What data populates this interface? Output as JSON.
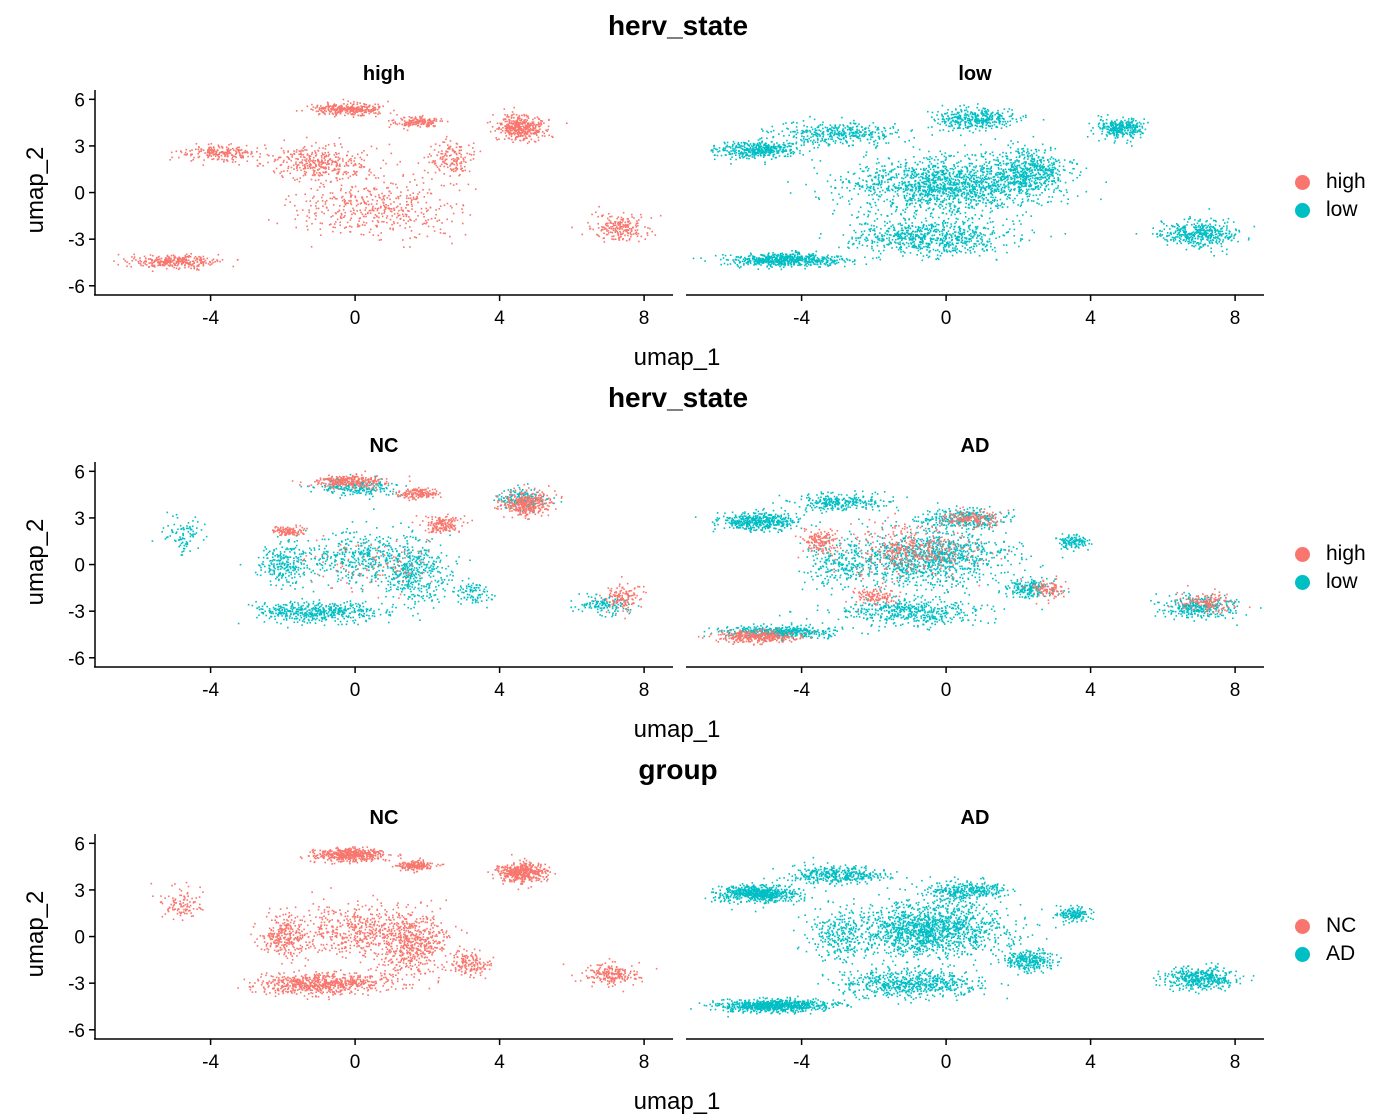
{
  "colors": {
    "red": "#F8766D",
    "teal": "#00BFC4",
    "axis": "#000000"
  },
  "legends": [
    {
      "items": [
        {
          "label": "high",
          "color": "#F8766D"
        },
        {
          "label": "low",
          "color": "#00BFC4"
        }
      ]
    },
    {
      "items": [
        {
          "label": "high",
          "color": "#F8766D"
        },
        {
          "label": "low",
          "color": "#00BFC4"
        }
      ]
    },
    {
      "items": [
        {
          "label": "NC",
          "color": "#F8766D"
        },
        {
          "label": "AD",
          "color": "#00BFC4"
        }
      ]
    }
  ],
  "chart_data": [
    {
      "type": "scatter",
      "title": "herv_state",
      "facet_by": "herv_state",
      "panels": [
        "high",
        "low"
      ],
      "xlabel": "umap_1",
      "ylabel": "umap_2",
      "xlim": [
        -7.2,
        8.8
      ],
      "ylim": [
        -6.4,
        6.6
      ],
      "xticks": [
        -4,
        0,
        4,
        8
      ],
      "yticks": [
        6,
        3,
        0,
        -3,
        -6
      ],
      "legend": "right",
      "series": [
        {
          "name": "high",
          "color": "#F8766D",
          "panel": 0,
          "points": 2600,
          "clusters": [
            [
              -0.2,
              5.4,
              0.9,
              0.35,
              0.12
            ],
            [
              1.7,
              4.6,
              0.6,
              0.3,
              0.06
            ],
            [
              4.6,
              4.2,
              0.6,
              0.7,
              0.16
            ],
            [
              -1.0,
              2.0,
              1.4,
              1.0,
              0.14
            ],
            [
              -3.8,
              2.6,
              1.0,
              0.5,
              0.08
            ],
            [
              0.5,
              -1.0,
              2.0,
              1.6,
              0.18
            ],
            [
              -5.0,
              -4.4,
              1.1,
              0.35,
              0.12
            ],
            [
              2.6,
              2.2,
              0.6,
              1.0,
              0.06
            ],
            [
              7.3,
              -2.2,
              0.7,
              0.8,
              0.08
            ]
          ]
        },
        {
          "name": "low",
          "color": "#00BFC4",
          "panel": 1,
          "points": 5200,
          "clusters": [
            [
              -5.2,
              2.8,
              1.0,
              0.5,
              0.08
            ],
            [
              0.0,
              0.5,
              2.5,
              1.6,
              0.28
            ],
            [
              -0.5,
              -2.8,
              2.0,
              1.0,
              0.14
            ],
            [
              -4.5,
              -4.3,
              1.4,
              0.4,
              0.12
            ],
            [
              0.8,
              4.8,
              1.0,
              0.6,
              0.07
            ],
            [
              4.8,
              4.2,
              0.6,
              0.6,
              0.06
            ],
            [
              2.3,
              1.4,
              0.9,
              1.3,
              0.1
            ],
            [
              7.0,
              -2.6,
              0.9,
              0.8,
              0.08
            ],
            [
              -3.0,
              3.8,
              1.5,
              0.7,
              0.07
            ]
          ]
        }
      ]
    },
    {
      "type": "scatter",
      "title": "herv_state",
      "facet_by": "group",
      "panels": [
        "NC",
        "AD"
      ],
      "xlabel": "umap_1",
      "ylabel": "umap_2",
      "xlim": [
        -7.2,
        8.8
      ],
      "ylim": [
        -6.4,
        6.6
      ],
      "xticks": [
        -4,
        0,
        4,
        8
      ],
      "yticks": [
        6,
        3,
        0,
        -3,
        -6
      ],
      "legend": "right",
      "series": [
        {
          "name": "low",
          "color": "#00BFC4",
          "panel": 0,
          "points": 2200,
          "clusters": [
            [
              -1.0,
              -3.0,
              1.6,
              0.6,
              0.22
            ],
            [
              1.6,
              -0.5,
              0.9,
              1.8,
              0.18
            ],
            [
              -2.0,
              0.0,
              0.6,
              1.2,
              0.1
            ],
            [
              0.0,
              5.0,
              1.0,
              0.5,
              0.1
            ],
            [
              4.6,
              4.2,
              0.6,
              0.6,
              0.08
            ],
            [
              0.0,
              0.5,
              1.5,
              1.5,
              0.18
            ],
            [
              6.9,
              -2.6,
              0.7,
              0.5,
              0.06
            ],
            [
              -4.8,
              2.0,
              0.5,
              1.0,
              0.04
            ],
            [
              3.2,
              -1.8,
              0.5,
              0.7,
              0.04
            ]
          ]
        },
        {
          "name": "high",
          "color": "#F8766D",
          "panel": 0,
          "points": 1300,
          "clusters": [
            [
              -0.2,
              5.4,
              0.9,
              0.35,
              0.22
            ],
            [
              1.7,
              4.6,
              0.5,
              0.3,
              0.12
            ],
            [
              4.7,
              4.0,
              0.6,
              0.7,
              0.28
            ],
            [
              2.4,
              2.6,
              0.5,
              0.6,
              0.12
            ],
            [
              -1.9,
              2.2,
              0.4,
              0.3,
              0.08
            ],
            [
              7.4,
              -2.0,
              0.5,
              0.7,
              0.1
            ],
            [
              0.5,
              0.0,
              1.5,
              1.5,
              0.08
            ]
          ]
        },
        {
          "name": "low",
          "color": "#00BFC4",
          "panel": 1,
          "points": 3900,
          "clusters": [
            [
              -5.2,
              2.8,
              1.0,
              0.5,
              0.12
            ],
            [
              -0.5,
              0.5,
              2.0,
              1.6,
              0.28
            ],
            [
              -1.0,
              -3.0,
              1.8,
              0.8,
              0.12
            ],
            [
              -4.6,
              -4.3,
              1.4,
              0.35,
              0.12
            ],
            [
              2.3,
              -1.5,
              0.6,
              0.6,
              0.05
            ],
            [
              3.5,
              1.5,
              0.4,
              0.4,
              0.03
            ],
            [
              7.0,
              -2.7,
              0.9,
              0.7,
              0.08
            ],
            [
              -3.0,
              4.0,
              1.2,
              0.5,
              0.07
            ],
            [
              0.5,
              3.0,
              1.0,
              0.6,
              0.08
            ],
            [
              -3.0,
              0.0,
              0.8,
              1.5,
              0.05
            ]
          ]
        },
        {
          "name": "high",
          "color": "#F8766D",
          "panel": 1,
          "points": 1400,
          "clusters": [
            [
              -5.3,
              -4.6,
              1.0,
              0.35,
              0.25
            ],
            [
              -1.0,
              1.0,
              1.5,
              1.5,
              0.28
            ],
            [
              -3.5,
              1.6,
              0.5,
              0.7,
              0.1
            ],
            [
              0.7,
              3.0,
              0.8,
              0.5,
              0.12
            ],
            [
              2.8,
              -1.5,
              0.4,
              0.5,
              0.07
            ],
            [
              7.2,
              -2.4,
              0.7,
              0.6,
              0.1
            ],
            [
              -2.0,
              -2.0,
              0.6,
              0.5,
              0.08
            ]
          ]
        }
      ]
    },
    {
      "type": "scatter",
      "title": "group",
      "facet_by": "group",
      "panels": [
        "NC",
        "AD"
      ],
      "xlabel": "umap_1",
      "ylabel": "umap_2",
      "xlim": [
        -7.2,
        8.8
      ],
      "ylim": [
        -6.4,
        6.6
      ],
      "xticks": [
        -4,
        0,
        4,
        8
      ],
      "yticks": [
        6,
        3,
        0,
        -3,
        -6
      ],
      "legend": "right",
      "series": [
        {
          "name": "NC",
          "color": "#F8766D",
          "panel": 0,
          "points": 3500,
          "clusters": [
            [
              -1.0,
              -3.0,
              1.6,
              0.6,
              0.2
            ],
            [
              1.6,
              -0.5,
              0.9,
              1.8,
              0.16
            ],
            [
              -2.0,
              0.0,
              0.6,
              1.2,
              0.08
            ],
            [
              -0.2,
              5.3,
              0.9,
              0.4,
              0.14
            ],
            [
              1.7,
              4.6,
              0.5,
              0.3,
              0.05
            ],
            [
              4.6,
              4.2,
              0.6,
              0.6,
              0.13
            ],
            [
              0.0,
              0.5,
              1.5,
              1.5,
              0.14
            ],
            [
              7.1,
              -2.4,
              0.7,
              0.6,
              0.06
            ],
            [
              -4.8,
              2.0,
              0.5,
              1.0,
              0.03
            ],
            [
              3.2,
              -1.8,
              0.5,
              0.7,
              0.04
            ]
          ]
        },
        {
          "name": "AD",
          "color": "#00BFC4",
          "panel": 1,
          "points": 5300,
          "clusters": [
            [
              -5.2,
              2.8,
              1.0,
              0.5,
              0.12
            ],
            [
              -0.5,
              0.5,
              2.0,
              1.6,
              0.28
            ],
            [
              -1.0,
              -3.0,
              1.8,
              0.8,
              0.12
            ],
            [
              -4.8,
              -4.4,
              1.4,
              0.35,
              0.15
            ],
            [
              2.3,
              -1.5,
              0.6,
              0.6,
              0.05
            ],
            [
              3.5,
              1.5,
              0.4,
              0.4,
              0.03
            ],
            [
              7.0,
              -2.7,
              0.9,
              0.7,
              0.08
            ],
            [
              -3.0,
              4.0,
              1.2,
              0.5,
              0.07
            ],
            [
              0.5,
              3.0,
              1.0,
              0.6,
              0.06
            ],
            [
              -3.0,
              0.0,
              0.8,
              1.5,
              0.04
            ]
          ]
        }
      ]
    }
  ]
}
